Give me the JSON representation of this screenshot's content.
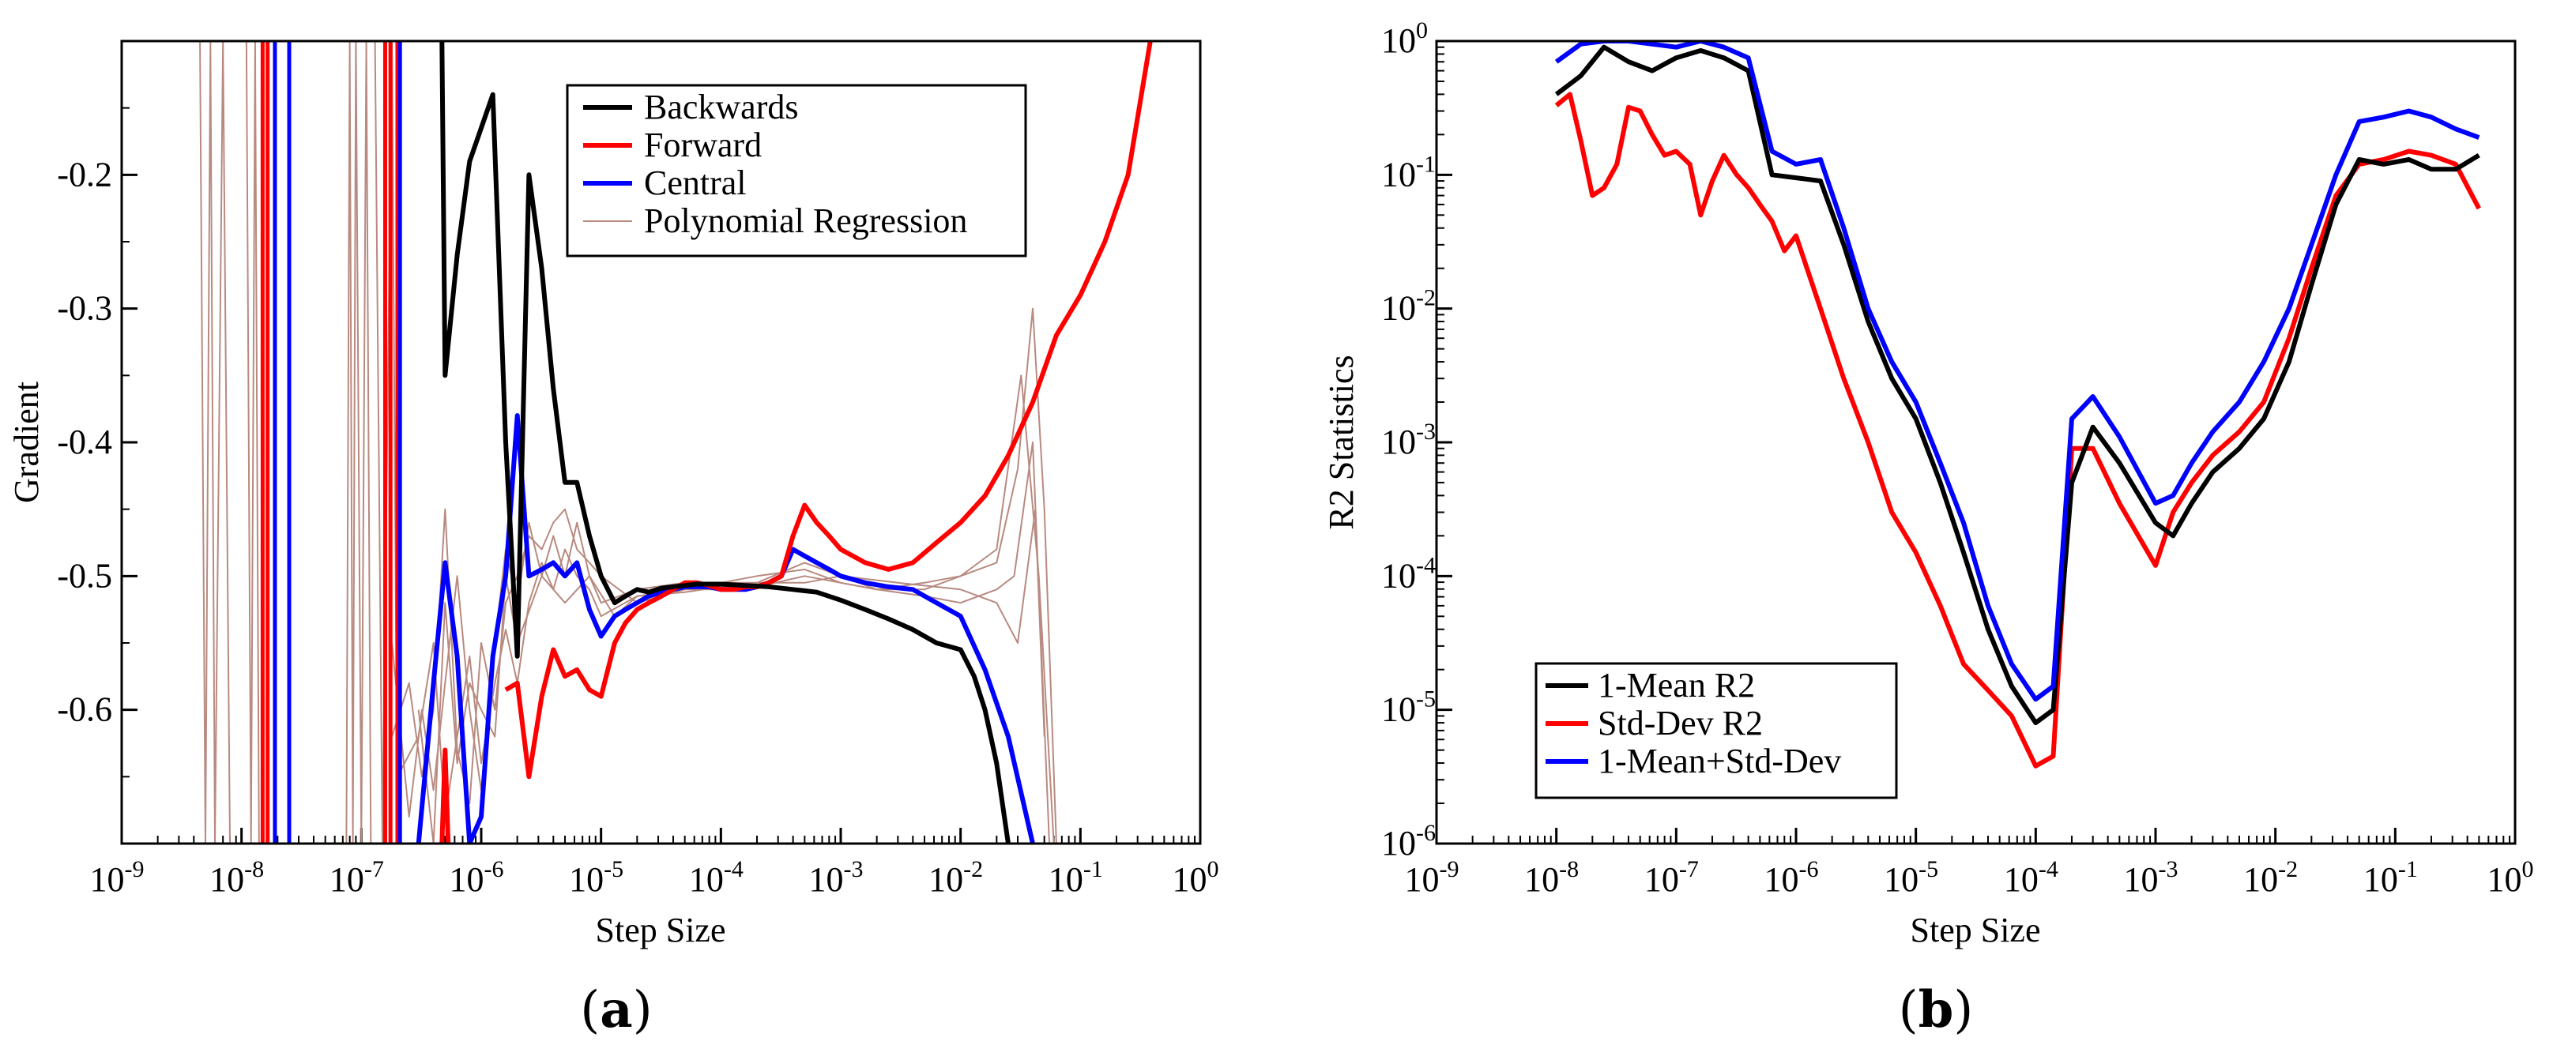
{
  "chart_data": [
    {
      "id": "a",
      "type": "line",
      "panel_label": "a",
      "xlabel": "Step Size",
      "ylabel": "Gradient",
      "xscale": "log",
      "xlim": [
        1e-09,
        1
      ],
      "ylim": [
        -0.7,
        -0.1
      ],
      "xtick_exponents": [
        "-9",
        "-8",
        "-7",
        "-6",
        "-5",
        "-4",
        "-3",
        "-2",
        "-1",
        "0"
      ],
      "xtick_base": "10",
      "yticks": [
        "-0.6",
        "-0.5",
        "-0.4",
        "-0.3",
        "-0.2"
      ],
      "ytick_values": [
        -0.6,
        -0.5,
        -0.4,
        -0.3,
        -0.2
      ],
      "legend": {
        "placement": "top-right"
      },
      "series": [
        {
          "name": "Backwards",
          "color": "#000000",
          "style": "thick",
          "x": [
            4.7e-07,
            5e-07,
            6.3e-07,
            8e-07,
            1e-06,
            1.25e-06,
            1.6e-06,
            2e-06,
            2.5e-06,
            3.2e-06,
            4e-06,
            5e-06,
            6.3e-06,
            8e-06,
            1e-05,
            1.3e-05,
            1.6e-05,
            2e-05,
            2.5e-05,
            3.2e-05,
            4e-05,
            5e-05,
            6.3e-05,
            8e-05,
            0.0001,
            0.00016,
            0.00025,
            0.0004,
            0.00063,
            0.001,
            0.0016,
            0.0025,
            0.004,
            0.0063,
            0.01,
            0.013,
            0.016,
            0.02,
            0.025
          ],
          "y": [
            -0.1,
            -0.35,
            -0.26,
            -0.19,
            -0.165,
            -0.14,
            -0.4,
            -0.56,
            -0.2,
            -0.27,
            -0.36,
            -0.43,
            -0.43,
            -0.47,
            -0.5,
            -0.52,
            -0.515,
            -0.51,
            -0.512,
            -0.509,
            -0.508,
            -0.507,
            -0.506,
            -0.506,
            -0.506,
            -0.507,
            -0.508,
            -0.51,
            -0.512,
            -0.518,
            -0.525,
            -0.532,
            -0.54,
            -0.55,
            -0.555,
            -0.575,
            -0.6,
            -0.64,
            -0.7
          ]
        },
        {
          "name": "Forward",
          "color": "#ff0000",
          "style": "thick",
          "x": [
            1.6e-06,
            2e-06,
            2.5e-06,
            3.2e-06,
            4e-06,
            5e-06,
            6.3e-06,
            8e-06,
            1e-05,
            1.3e-05,
            1.6e-05,
            2e-05,
            2.5e-05,
            3.2e-05,
            4e-05,
            5e-05,
            6.3e-05,
            8e-05,
            0.0001,
            0.00013,
            0.00016,
            0.0002,
            0.00025,
            0.00032,
            0.0004,
            0.0005,
            0.00063,
            0.0008,
            0.001,
            0.0016,
            0.0025,
            0.004,
            0.0063,
            0.01,
            0.016,
            0.025,
            0.04,
            0.063,
            0.1,
            0.16,
            0.25,
            0.4
          ],
          "y": [
            -0.585,
            -0.58,
            -0.65,
            -0.59,
            -0.555,
            -0.575,
            -0.57,
            -0.585,
            -0.59,
            -0.55,
            -0.535,
            -0.525,
            -0.52,
            -0.515,
            -0.51,
            -0.505,
            -0.505,
            -0.507,
            -0.51,
            -0.51,
            -0.508,
            -0.508,
            -0.505,
            -0.5,
            -0.47,
            -0.447,
            -0.46,
            -0.47,
            -0.48,
            -0.49,
            -0.495,
            -0.49,
            -0.475,
            -0.46,
            -0.44,
            -0.41,
            -0.37,
            -0.32,
            -0.29,
            -0.25,
            -0.2,
            -0.09
          ]
        },
        {
          "name": "Central",
          "color": "#0000ff",
          "style": "thick",
          "x": [
            3e-07,
            4e-07,
            5e-07,
            6.3e-07,
            8e-07,
            1e-06,
            1.25e-06,
            1.6e-06,
            2e-06,
            2.5e-06,
            3.2e-06,
            4e-06,
            5e-06,
            6.3e-06,
            8e-06,
            1e-05,
            1.3e-05,
            1.6e-05,
            2e-05,
            2.5e-05,
            3.2e-05,
            4e-05,
            5e-05,
            6.3e-05,
            8e-05,
            0.0001,
            0.00013,
            0.00016,
            0.0002,
            0.00025,
            0.00032,
            0.0004,
            0.0005,
            0.00063,
            0.0008,
            0.001,
            0.0016,
            0.0025,
            0.004,
            0.0063,
            0.01,
            0.016,
            0.025,
            0.04
          ],
          "y": [
            -0.7,
            -0.58,
            -0.49,
            -0.56,
            -0.7,
            -0.68,
            -0.56,
            -0.5,
            -0.38,
            -0.5,
            -0.495,
            -0.49,
            -0.5,
            -0.49,
            -0.525,
            -0.545,
            -0.53,
            -0.525,
            -0.52,
            -0.515,
            -0.512,
            -0.51,
            -0.508,
            -0.508,
            -0.508,
            -0.51,
            -0.51,
            -0.51,
            -0.508,
            -0.505,
            -0.5,
            -0.48,
            -0.485,
            -0.49,
            -0.495,
            -0.5,
            -0.505,
            -0.508,
            -0.51,
            -0.52,
            -0.53,
            -0.57,
            -0.62,
            -0.7
          ]
        },
        {
          "name": "Polynomial Regression",
          "color": "#b88a80",
          "style": "thin"
        }
      ]
    },
    {
      "id": "b",
      "type": "line",
      "panel_label": "b",
      "xlabel": "Step Size",
      "ylabel": "R2 Statistics",
      "xscale": "log",
      "yscale": "log",
      "xlim": [
        1e-09,
        1
      ],
      "ylim": [
        1e-06,
        1
      ],
      "xtick_exponents": [
        "-9",
        "-8",
        "-7",
        "-6",
        "-5",
        "-4",
        "-3",
        "-2",
        "-1",
        "0"
      ],
      "xtick_base": "10",
      "ytick_exponents": [
        "-6",
        "-5",
        "-4",
        "-3",
        "-2",
        "-1",
        "0"
      ],
      "ytick_base": "10",
      "legend": {
        "placement": "bottom-left"
      },
      "series": [
        {
          "name": "1-Mean R2",
          "color": "#000000",
          "x": [
            1e-08,
            1.6e-08,
            2.5e-08,
            4e-08,
            6.3e-08,
            1e-07,
            1.6e-07,
            2.5e-07,
            4e-07,
            6.3e-07,
            1e-06,
            1.6e-06,
            2.5e-06,
            4e-06,
            6.3e-06,
            1e-05,
            1.6e-05,
            2.5e-05,
            4e-05,
            6.3e-05,
            0.0001,
            0.00014,
            0.0002,
            0.0003,
            0.0005,
            0.001,
            0.0014,
            0.002,
            0.003,
            0.005,
            0.008,
            0.013,
            0.02,
            0.032,
            0.05,
            0.08,
            0.13,
            0.2,
            0.32,
            0.5
          ],
          "y": [
            0.4,
            0.55,
            0.9,
            0.7,
            0.6,
            0.75,
            0.85,
            0.75,
            0.6,
            0.1,
            0.095,
            0.09,
            0.03,
            0.008,
            0.003,
            0.0015,
            0.0005,
            0.00015,
            4e-05,
            1.5e-05,
            8e-06,
            1e-05,
            0.0005,
            0.0013,
            0.0007,
            0.00025,
            0.0002,
            0.00035,
            0.0006,
            0.0009,
            0.0015,
            0.004,
            0.015,
            0.06,
            0.13,
            0.12,
            0.13,
            0.11,
            0.11,
            0.14
          ]
        },
        {
          "name": "Std-Dev R2",
          "color": "#ff0000",
          "x": [
            1e-08,
            1.3e-08,
            1.6e-08,
            2e-08,
            2.5e-08,
            3.2e-08,
            4e-08,
            5e-08,
            6.3e-08,
            8e-08,
            1e-07,
            1.3e-07,
            1.6e-07,
            2e-07,
            2.5e-07,
            3.2e-07,
            4e-07,
            5e-07,
            6.3e-07,
            8e-07,
            1e-06,
            1.6e-06,
            2.5e-06,
            4e-06,
            6.3e-06,
            1e-05,
            1.6e-05,
            2.5e-05,
            4e-05,
            6.3e-05,
            0.0001,
            0.00014,
            0.0002,
            0.0003,
            0.0005,
            0.001,
            0.0014,
            0.002,
            0.003,
            0.005,
            0.008,
            0.013,
            0.02,
            0.032,
            0.05,
            0.08,
            0.13,
            0.2,
            0.32,
            0.5
          ],
          "y": [
            0.33,
            0.4,
            0.18,
            0.07,
            0.08,
            0.12,
            0.32,
            0.3,
            0.2,
            0.14,
            0.15,
            0.12,
            0.05,
            0.09,
            0.14,
            0.1,
            0.08,
            0.06,
            0.045,
            0.027,
            0.035,
            0.01,
            0.003,
            0.001,
            0.0003,
            0.00015,
            6e-05,
            2.2e-05,
            1.4e-05,
            9e-06,
            3.8e-06,
            4.5e-06,
            0.0009,
            0.0009,
            0.00035,
            0.00012,
            0.0003,
            0.0005,
            0.0008,
            0.0012,
            0.002,
            0.006,
            0.02,
            0.07,
            0.12,
            0.13,
            0.15,
            0.14,
            0.12,
            0.056
          ]
        },
        {
          "name": "1-Mean+Std-Dev",
          "color": "#0000ff",
          "x": [
            1e-08,
            1.6e-08,
            2.5e-08,
            4e-08,
            6.3e-08,
            1e-07,
            1.6e-07,
            2.5e-07,
            4e-07,
            6.3e-07,
            1e-06,
            1.6e-06,
            2.5e-06,
            4e-06,
            6.3e-06,
            1e-05,
            1.6e-05,
            2.5e-05,
            4e-05,
            6.3e-05,
            0.0001,
            0.00014,
            0.0002,
            0.0003,
            0.0005,
            0.001,
            0.0014,
            0.002,
            0.003,
            0.005,
            0.008,
            0.013,
            0.02,
            0.032,
            0.05,
            0.08,
            0.13,
            0.2,
            0.32,
            0.5
          ],
          "y": [
            0.7,
            0.95,
            1,
            1,
            0.95,
            0.9,
            1,
            0.9,
            0.75,
            0.15,
            0.12,
            0.13,
            0.04,
            0.01,
            0.004,
            0.002,
            0.0007,
            0.00025,
            6e-05,
            2.2e-05,
            1.2e-05,
            1.5e-05,
            0.0015,
            0.0022,
            0.0011,
            0.00035,
            0.0004,
            0.0007,
            0.0012,
            0.002,
            0.004,
            0.01,
            0.03,
            0.1,
            0.25,
            0.27,
            0.3,
            0.27,
            0.22,
            0.19
          ]
        }
      ]
    }
  ]
}
